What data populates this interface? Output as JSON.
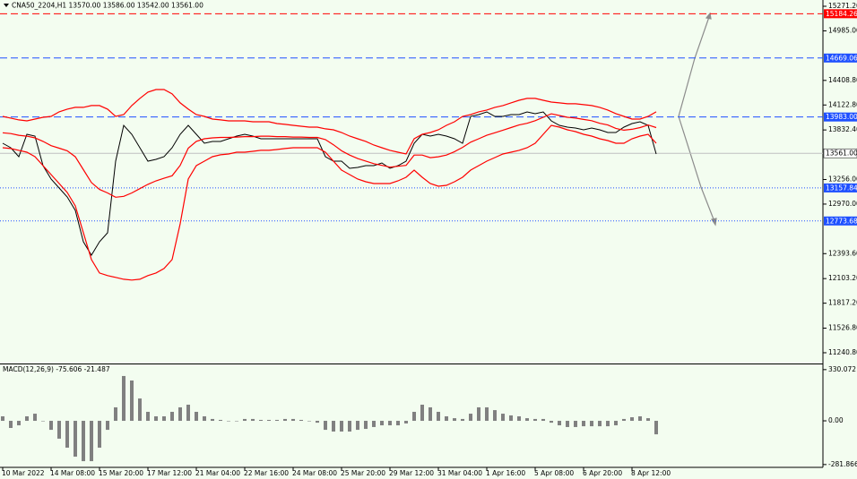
{
  "chart_data": {
    "type": "line",
    "title": "CNA50_2204,H1 13570.00 13586.00 13542.00 13561.00",
    "categories": [
      "10 Mar 2022",
      null,
      null,
      null,
      null,
      null,
      "14 Mar 08:00",
      null,
      null,
      null,
      null,
      null,
      "15 Mar 20:00",
      null,
      null,
      null,
      null,
      null,
      "17 Mar 12:00",
      null,
      null,
      null,
      null,
      null,
      "21 Mar 04:00",
      null,
      null,
      null,
      null,
      null,
      "22 Mar 16:00",
      null,
      null,
      null,
      null,
      null,
      "24 Mar 08:00",
      null,
      null,
      null,
      null,
      null,
      "25 Mar 20:00",
      null,
      null,
      null,
      null,
      null,
      "29 Mar 12:00",
      null,
      null,
      null,
      null,
      null,
      "31 Mar 04:00",
      null,
      null,
      null,
      null,
      null,
      "1 Apr 16:00",
      null,
      null,
      null,
      null,
      null,
      "5 Apr 08:00",
      null,
      null,
      null,
      null,
      null,
      "6 Apr 20:00",
      null,
      null,
      null,
      null,
      null,
      "8 Apr 12:00",
      null,
      null,
      null
    ],
    "series": [
      {
        "color": "#000000",
        "values": [
          13678,
          13626,
          13521,
          13782,
          13761,
          13417,
          13261,
          13157,
          13053,
          12897,
          12532,
          12376,
          12532,
          12636,
          13469,
          13886,
          13782,
          13626,
          13469,
          13490,
          13521,
          13626,
          13782,
          13886,
          13782,
          13678,
          13698,
          13698,
          13730,
          13761,
          13782,
          13761,
          13730,
          13730,
          13730,
          13730,
          13730,
          13730,
          13730,
          13730,
          13521,
          13469,
          13469,
          13386,
          13396,
          13417,
          13417,
          13449,
          13386,
          13417,
          13469,
          13678,
          13782,
          13761,
          13782,
          13761,
          13730,
          13678,
          13990,
          14011,
          14042,
          13990,
          13990,
          14011,
          14011,
          14042,
          14021,
          14042,
          13938,
          13886,
          13865,
          13855,
          13834,
          13855,
          13834,
          13803,
          13803,
          13865,
          13907,
          13928,
          13886,
          13553
        ]
      },
      {
        "color": "#ff0000",
        "values": [
          13990,
          13970,
          13949,
          13938,
          13959,
          13980,
          13990,
          14043,
          14074,
          14095,
          14095,
          14116,
          14116,
          14074,
          13990,
          14011,
          14116,
          14199,
          14272,
          14303,
          14303,
          14251,
          14147,
          14074,
          14011,
          13990,
          13959,
          13949,
          13938,
          13938,
          13938,
          13928,
          13928,
          13928,
          13907,
          13897,
          13886,
          13876,
          13865,
          13865,
          13845,
          13834,
          13803,
          13761,
          13730,
          13699,
          13657,
          13626,
          13595,
          13574,
          13553,
          13730,
          13782,
          13803,
          13834,
          13886,
          13928,
          13990,
          14011,
          14043,
          14064,
          14095,
          14116,
          14147,
          14178,
          14199,
          14199,
          14178,
          14157,
          14147,
          14137,
          14137,
          14126,
          14116,
          14095,
          14064,
          14022,
          13990,
          13959,
          13959,
          13990,
          14043
        ]
      },
      {
        "color": "#ff0000",
        "values": [
          13800,
          13790,
          13770,
          13760,
          13740,
          13700,
          13650,
          13620,
          13590,
          13520,
          13370,
          13220,
          13140,
          13100,
          13050,
          13060,
          13100,
          13150,
          13200,
          13240,
          13270,
          13300,
          13420,
          13620,
          13700,
          13730,
          13740,
          13745,
          13745,
          13750,
          13755,
          13755,
          13760,
          13760,
          13755,
          13755,
          13750,
          13750,
          13745,
          13745,
          13720,
          13660,
          13590,
          13540,
          13500,
          13470,
          13440,
          13420,
          13400,
          13410,
          13420,
          13540,
          13540,
          13510,
          13520,
          13540,
          13580,
          13630,
          13690,
          13730,
          13770,
          13800,
          13830,
          13860,
          13890,
          13910,
          13940,
          13980,
          14020,
          14000,
          13980,
          13970,
          13955,
          13940,
          13910,
          13890,
          13850,
          13830,
          13840,
          13860,
          13890,
          13860
        ]
      },
      {
        "color": "#ff0000",
        "values": [
          13626,
          13616,
          13595,
          13574,
          13521,
          13417,
          13313,
          13209,
          13105,
          12949,
          12637,
          12325,
          12169,
          12138,
          12117,
          12096,
          12086,
          12096,
          12138,
          12169,
          12221,
          12325,
          12741,
          13261,
          13417,
          13469,
          13521,
          13543,
          13553,
          13574,
          13574,
          13584,
          13595,
          13595,
          13605,
          13616,
          13626,
          13626,
          13626,
          13626,
          13574,
          13469,
          13365,
          13313,
          13261,
          13230,
          13209,
          13209,
          13209,
          13240,
          13282,
          13365,
          13282,
          13209,
          13178,
          13188,
          13230,
          13282,
          13365,
          13417,
          13469,
          13511,
          13553,
          13574,
          13595,
          13626,
          13678,
          13782,
          13886,
          13865,
          13834,
          13813,
          13782,
          13761,
          13730,
          13709,
          13678,
          13678,
          13730,
          13761,
          13782,
          13678
        ]
      }
    ],
    "ylim": [
      11126,
      15344
    ],
    "yticks": [
      {
        "value": 15271.2,
        "label": "15271.20"
      },
      {
        "value": 14985,
        "label": "14985.00"
      },
      {
        "value": 14408.8,
        "label": "14408.80"
      },
      {
        "value": 14122.8,
        "label": "14122.80"
      },
      {
        "value": 13832.4,
        "label": "13832.40"
      },
      {
        "value": 13256,
        "label": "13256.00"
      },
      {
        "value": 12970,
        "label": "12970.00"
      },
      {
        "value": 12393.6,
        "label": "12393.60"
      },
      {
        "value": 12103.2,
        "label": "12103.20"
      },
      {
        "value": 11817.2,
        "label": "11817.20"
      },
      {
        "value": 11526.8,
        "label": "11526.80"
      },
      {
        "value": 11240.8,
        "label": "11240.80"
      }
    ],
    "levels": [
      {
        "value": 15184.26,
        "color": "#ff0000",
        "style": "dashed"
      },
      {
        "value": 14669.06,
        "color": "#1e50ff",
        "style": "dashed"
      },
      {
        "value": 13983,
        "label": "13983.00",
        "color": "#1e50ff",
        "style": "dashed"
      },
      {
        "value": 13561,
        "label": "13561.00",
        "color": "#c0c0c0",
        "style": "solid"
      },
      {
        "value": 13157.84,
        "color": "#1e50ff",
        "style": "dotted"
      },
      {
        "value": 12773.68,
        "color": "#1e50ff",
        "style": "dotted"
      }
    ],
    "macd": {
      "title": "MACD(12,26,9) -75.606 -21.487",
      "color": "#808080",
      "values": [
        29,
        -46,
        -29,
        29,
        46,
        0,
        -58,
        -115,
        -173,
        -231,
        -260,
        -260,
        -173,
        -58,
        87,
        289,
        260,
        144,
        58,
        29,
        29,
        58,
        87,
        104,
        58,
        29,
        12,
        6,
        0,
        0,
        12,
        12,
        6,
        6,
        6,
        12,
        12,
        6,
        0,
        -12,
        -58,
        -69,
        -69,
        -69,
        -58,
        -52,
        -40,
        -29,
        -29,
        -29,
        -17,
        58,
        104,
        87,
        58,
        29,
        17,
        12,
        46,
        87,
        87,
        69,
        46,
        35,
        29,
        17,
        12,
        12,
        -12,
        -29,
        -40,
        -40,
        -35,
        -35,
        -35,
        -35,
        -29,
        12,
        23,
        29,
        17,
        -87
      ],
      "ylim": [
        -300,
        358
      ],
      "yticks": [
        {
          "value": 330.072,
          "label": "330.072"
        },
        {
          "value": 0,
          "label": "0.00"
        },
        {
          "value": -281.866,
          "label": "-281.866"
        }
      ]
    }
  }
}
